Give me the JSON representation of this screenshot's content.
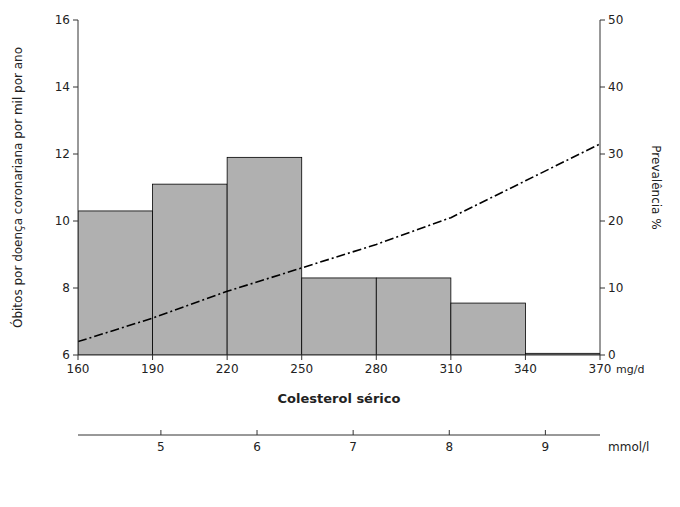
{
  "chart_data": {
    "type": "bar",
    "xlabel": "Colesterol sérico",
    "x_unit": "mg/d",
    "x2_unit": "mmol/l",
    "ylabel": "Óbitos por doença coronariana por mil por ano",
    "y2label": "Prevalência %",
    "xlim": [
      160,
      370
    ],
    "xticks": [
      160,
      190,
      220,
      250,
      280,
      310,
      340,
      370
    ],
    "x2ticks": [
      {
        "value": 193.35,
        "label": "5"
      },
      {
        "value": 232.02,
        "label": "6"
      },
      {
        "value": 270.69,
        "label": "7"
      },
      {
        "value": 309.36,
        "label": "8"
      },
      {
        "value": 348.03,
        "label": "9"
      }
    ],
    "ylim": [
      6,
      16
    ],
    "yticks": [
      6,
      8,
      10,
      12,
      14,
      16
    ],
    "y2lim": [
      0,
      50
    ],
    "y2ticks": [
      0,
      10,
      20,
      30,
      40,
      50
    ],
    "grid": false,
    "series": [
      {
        "type": "bar",
        "color": "#b0b0b0",
        "bins": [
          160,
          190,
          220,
          250,
          280,
          310,
          340,
          370
        ],
        "values": [
          10.3,
          11.1,
          11.9,
          8.3,
          8.3,
          7.55,
          6.05
        ]
      },
      {
        "type": "line",
        "color": "#000000",
        "line_style": "dashdot",
        "x": [
          160,
          190,
          220,
          250,
          280,
          310,
          340,
          370
        ],
        "values": [
          6.4,
          7.1,
          7.9,
          8.6,
          9.3,
          10.1,
          11.2,
          12.3
        ]
      }
    ]
  }
}
